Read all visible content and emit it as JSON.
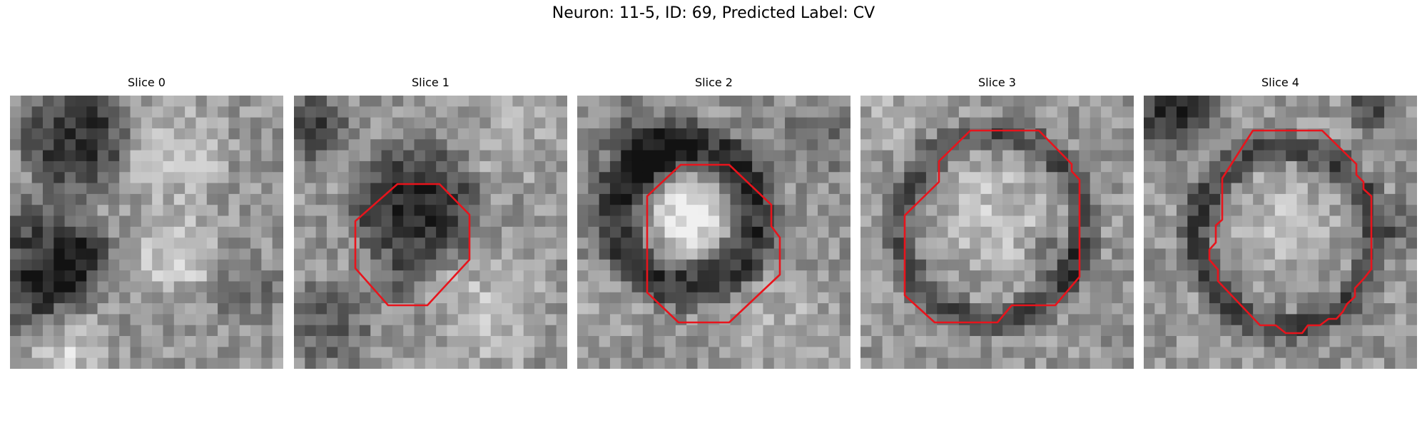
{
  "figure": {
    "title": "Neuron: 11-5, ID: 69, Predicted Label: CV"
  },
  "panels": [
    {
      "title": "Slice 0"
    },
    {
      "title": "Slice 1"
    },
    {
      "title": "Slice 2"
    },
    {
      "title": "Slice 3"
    },
    {
      "title": "Slice 4"
    }
  ],
  "colors": {
    "contour": "#e8141c"
  }
}
